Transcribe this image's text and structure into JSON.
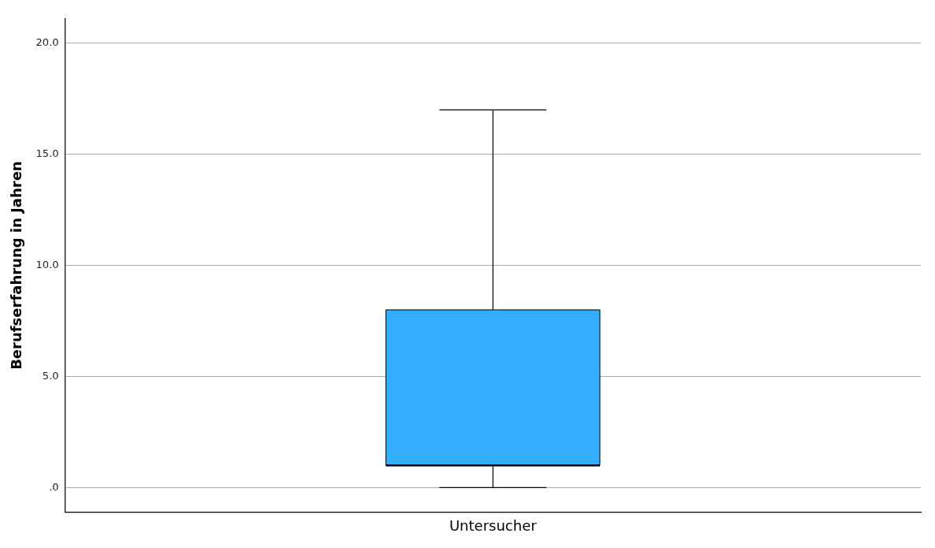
{
  "chart_data": {
    "type": "box",
    "ylabel": "Berufserfahrung in Jahren",
    "categories": [
      "Untersucher"
    ],
    "color": "#33adfe",
    "boxes": [
      {
        "low": 0,
        "q1": 1,
        "median": 1,
        "q3": 8,
        "high": 17
      }
    ],
    "ylim": [
      -1.1,
      21.1
    ],
    "yticks": [
      {
        "value": 0,
        "label": ".0"
      },
      {
        "value": 5,
        "label": "5.0"
      },
      {
        "value": 10,
        "label": "10.0"
      },
      {
        "value": 15,
        "label": "15.0"
      },
      {
        "value": 20,
        "label": "20.0"
      }
    ],
    "grid": "y"
  }
}
